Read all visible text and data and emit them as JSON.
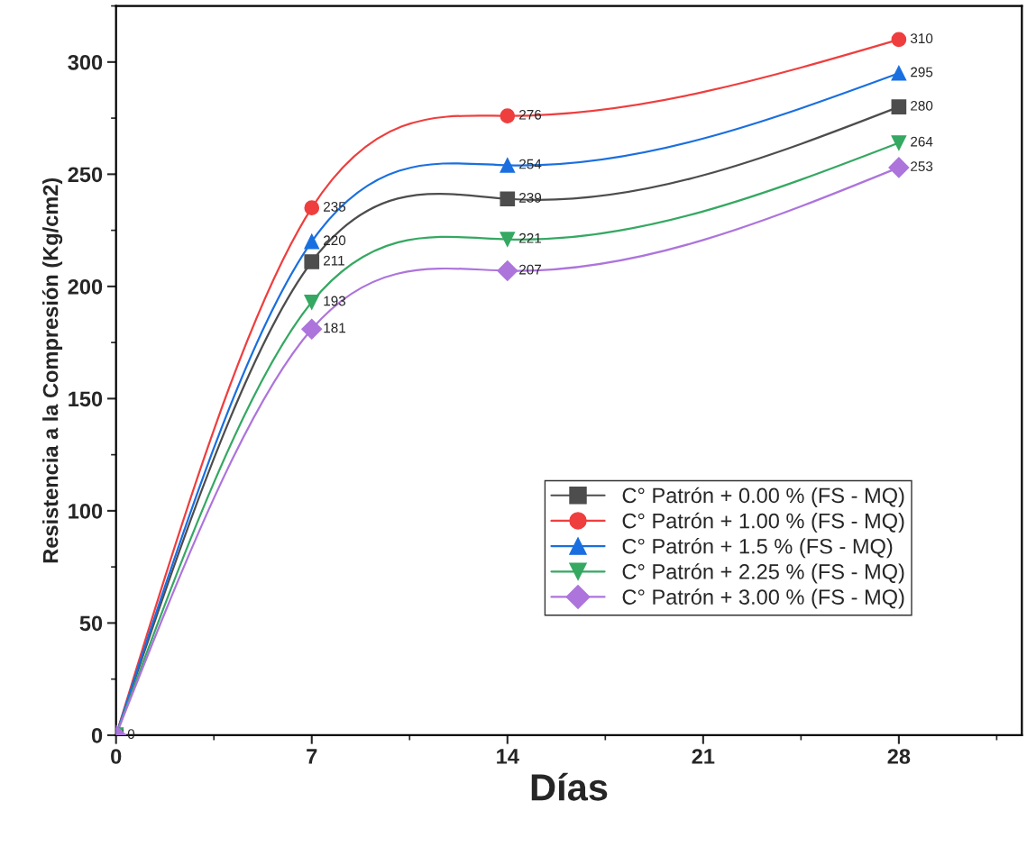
{
  "chart_data": {
    "type": "line",
    "xlabel": "Días",
    "ylabel": "Resistencia a la Compresión (Kg/cm2)",
    "x": [
      0,
      7,
      14,
      28
    ],
    "series": [
      {
        "name": "C° Patrón + 0.00 % (FS - MQ)",
        "color": "#4d4d4d",
        "marker": "square",
        "values": [
          0,
          211,
          239,
          280
        ],
        "value_labels": [
          null,
          "211",
          "239",
          "280"
        ]
      },
      {
        "name": "C° Patrón + 1.00 % (FS - MQ)",
        "color": "#ef3e3e",
        "marker": "circle",
        "values": [
          0,
          235,
          276,
          310
        ],
        "value_labels": [
          null,
          "235",
          "276",
          "310"
        ]
      },
      {
        "name": "C° Patrón + 1.5 % (FS - MQ)",
        "color": "#1a6fe0",
        "marker": "triangle",
        "values": [
          0,
          220,
          254,
          295
        ],
        "value_labels": [
          null,
          "220",
          "254",
          "295"
        ]
      },
      {
        "name": "C° Patrón + 2.25 % (FS - MQ)",
        "color": "#35a862",
        "marker": "triangle_down",
        "values": [
          0,
          193,
          221,
          264
        ],
        "value_labels": [
          null,
          "193",
          "221",
          "264"
        ]
      },
      {
        "name": "C° Patrón + 3.00 % (FS - MQ)",
        "color": "#ad74dc",
        "marker": "diamond",
        "values": [
          0,
          181,
          207,
          253
        ],
        "value_labels": [
          "0",
          "181",
          "207",
          "253"
        ]
      }
    ],
    "xlim": [
      0,
      32.4
    ],
    "xticks": [
      0,
      7,
      14,
      21,
      28
    ],
    "ylim": [
      0,
      325
    ],
    "yticks": [
      0,
      50,
      100,
      150,
      200,
      250,
      300
    ],
    "legend": "bottom right",
    "grid": false,
    "line_style": "solid"
  }
}
